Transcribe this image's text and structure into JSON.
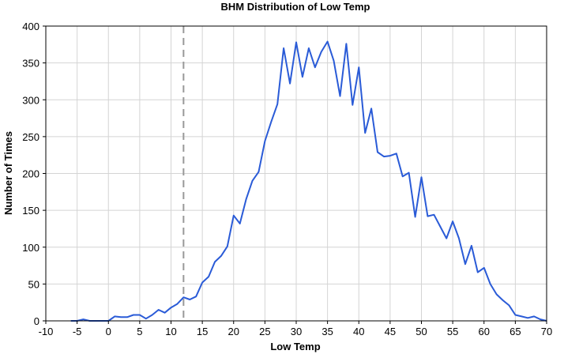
{
  "chart_data": {
    "type": "line",
    "title": "BHM Distribution of Low Temp",
    "xlabel": "Low Temp",
    "ylabel": "Number of Times",
    "xlim": [
      -10,
      70
    ],
    "ylim": [
      0,
      400
    ],
    "xticks": [
      -10,
      -5,
      0,
      5,
      10,
      15,
      20,
      25,
      30,
      35,
      40,
      45,
      50,
      55,
      60,
      65,
      70
    ],
    "yticks": [
      0,
      50,
      100,
      150,
      200,
      250,
      300,
      350,
      400
    ],
    "grid": true,
    "legend": "none",
    "line_color": "#2a5bd7",
    "reference_line": {
      "x": 12,
      "style": "dashed",
      "color": "#999999"
    },
    "series": [
      {
        "x": [
          -6,
          -5,
          -4,
          -3,
          -2,
          -1,
          0,
          1,
          2,
          3,
          4,
          5,
          6,
          7,
          8,
          9,
          10,
          11,
          12,
          13,
          14,
          15,
          16,
          17,
          18,
          19,
          20,
          21,
          22,
          23,
          24,
          25,
          26,
          27,
          28,
          29,
          30,
          31,
          32,
          33,
          34,
          35,
          36,
          37,
          38,
          39,
          40,
          41,
          42,
          43,
          44,
          45,
          46,
          47,
          48,
          49,
          50,
          51,
          52,
          53,
          54,
          55,
          56,
          57,
          58,
          59,
          60,
          61,
          62,
          63,
          64,
          65,
          66,
          67,
          68,
          69,
          70
        ],
        "values": [
          0,
          0,
          2,
          0,
          0,
          0,
          0,
          6,
          5,
          5,
          8,
          8,
          3,
          8,
          15,
          11,
          18,
          23,
          32,
          29,
          33,
          52,
          60,
          80,
          88,
          101,
          143,
          132,
          165,
          190,
          202,
          244,
          270,
          294,
          370,
          322,
          378,
          331,
          370,
          344,
          365,
          379,
          353,
          305,
          376,
          293,
          344,
          255,
          288,
          229,
          223,
          224,
          227,
          196,
          201,
          141,
          195,
          142,
          144,
          128,
          112,
          135,
          112,
          77,
          102,
          66,
          72,
          50,
          36,
          28,
          21,
          8,
          6,
          4,
          6,
          2,
          0
        ]
      }
    ]
  }
}
